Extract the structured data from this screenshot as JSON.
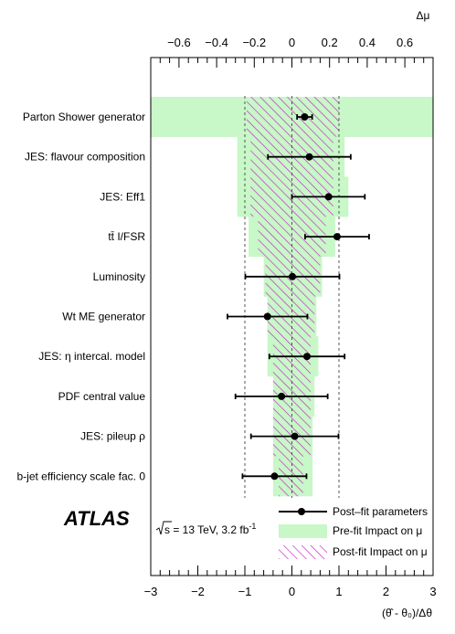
{
  "chart_data": {
    "type": "ranking",
    "top_axis_label": "Δμ",
    "bottom_axis_label": "(θ̂ - θ₀)/Δθ",
    "bottom_axis": {
      "range": [
        -3,
        3
      ],
      "ticks": [
        "−3",
        "−2",
        "−1",
        "0",
        "1",
        "2",
        "3"
      ],
      "values": [
        -3,
        -2,
        -1,
        0,
        1,
        2,
        3
      ]
    },
    "top_axis": {
      "range": [
        -0.75,
        0.75
      ],
      "ticks": [
        "−0.6",
        "−0.4",
        "−0.2",
        "0",
        "0.2",
        "0.4",
        "0.6"
      ],
      "values": [
        -0.6,
        -0.4,
        -0.2,
        0,
        0.2,
        0.4,
        0.6
      ]
    },
    "reference_lines": [
      -1,
      0,
      1
    ],
    "nuisance_parameters": [
      {
        "label": "Parton Shower generator",
        "pull": 0.27,
        "err_lo": 0.16,
        "err_hi": 0.16,
        "prefit": [
          -0.75,
          0.75
        ],
        "postfit": [
          -0.24,
          0.25
        ]
      },
      {
        "label": "JES: flavour composition",
        "pull": 0.37,
        "err_lo": 0.88,
        "err_hi": 0.88,
        "prefit": [
          -0.29,
          0.28
        ],
        "postfit": [
          -0.22,
          0.22
        ]
      },
      {
        "label": "JES: Eff1",
        "pull": 0.78,
        "err_lo": 0.78,
        "err_hi": 0.77,
        "prefit": [
          -0.29,
          0.3
        ],
        "postfit": [
          -0.22,
          0.22
        ]
      },
      {
        "label": "tt̄ I/FSR",
        "pull": 0.96,
        "err_lo": 0.68,
        "err_hi": 0.68,
        "prefit": [
          -0.23,
          0.23
        ],
        "postfit": [
          -0.18,
          0.18
        ]
      },
      {
        "label": "Luminosity",
        "pull": 0.01,
        "err_lo": 1.0,
        "err_hi": 1.0,
        "prefit": [
          -0.15,
          0.16
        ],
        "postfit": [
          -0.14,
          0.15
        ]
      },
      {
        "label": "Wt ME generator",
        "pull": -0.52,
        "err_lo": 0.85,
        "err_hi": 0.85,
        "prefit": [
          -0.13,
          0.13
        ],
        "postfit": [
          -0.13,
          0.12
        ]
      },
      {
        "label": "JES: η intercal. model",
        "pull": 0.32,
        "err_lo": 0.8,
        "err_hi": 0.8,
        "prefit": [
          -0.13,
          0.14
        ],
        "postfit": [
          -0.1,
          0.1
        ]
      },
      {
        "label": "PDF central value",
        "pull": -0.22,
        "err_lo": 0.98,
        "err_hi": 0.98,
        "prefit": [
          -0.1,
          0.12
        ],
        "postfit": [
          -0.1,
          0.1
        ]
      },
      {
        "label": "JES: pileup ρ",
        "pull": 0.06,
        "err_lo": 0.93,
        "err_hi": 0.93,
        "prefit": [
          -0.1,
          0.11
        ],
        "postfit": [
          -0.1,
          0.1
        ]
      },
      {
        "label": "b-jet efficiency scale fac. 0",
        "pull": -0.37,
        "err_lo": 0.68,
        "err_hi": 0.68,
        "prefit": [
          -0.1,
          0.11
        ],
        "postfit": [
          -0.07,
          0.06
        ]
      }
    ],
    "legend": [
      {
        "label": "Post–fit parameters",
        "kind": "marker"
      },
      {
        "label": "Pre-fit Impact on μ",
        "kind": "prefit"
      },
      {
        "label": "Post-fit Impact on μ",
        "kind": "postfit"
      }
    ],
    "legend_position": "bottom-right",
    "annotation": {
      "experiment": "ATLAS",
      "sqrt_s_prefix": "s",
      "energy_text": " = 13 TeV, 3.2 fb",
      "lumi_exponent": "-1"
    },
    "colors": {
      "prefit": "#c8f7c8",
      "postfit_hatch": "#c81ec8",
      "marker": "#000000"
    }
  }
}
